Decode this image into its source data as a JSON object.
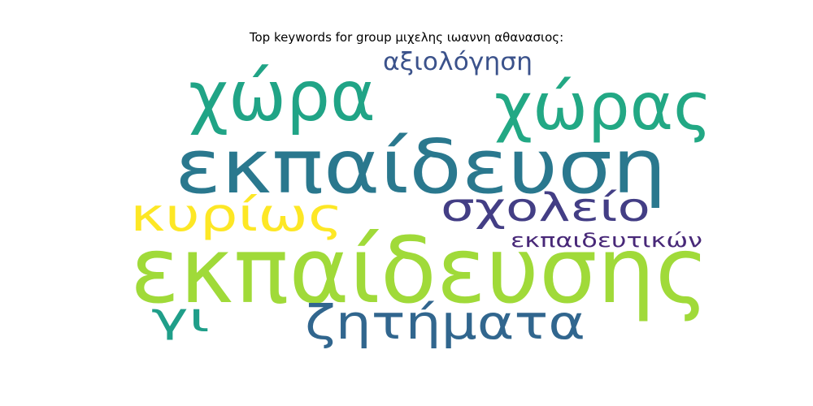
{
  "figure": {
    "title": "Top keywords for group μιχελης ιωαννη αθανασιος:"
  },
  "wordcloud": {
    "words": [
      {
        "text": "εκπαίδευσης",
        "color": "#a0da39",
        "rank": 1
      },
      {
        "text": "εκπαίδευση",
        "color": "#2a788e",
        "rank": 2
      },
      {
        "text": "χώρα",
        "color": "#20a486",
        "rank": 3
      },
      {
        "text": "χώρας",
        "color": "#22a884",
        "rank": 4
      },
      {
        "text": "ζητήματα",
        "color": "#31668e",
        "rank": 5
      },
      {
        "text": "κυρίως",
        "color": "#fde725",
        "rank": 6
      },
      {
        "text": "σχολείο",
        "color": "#433e85",
        "rank": 7
      },
      {
        "text": "γι",
        "color": "#1f9e89",
        "rank": 8
      },
      {
        "text": "αξιολόγηση",
        "color": "#3b528b",
        "rank": 9
      },
      {
        "text": "εκπαιδευτικών",
        "color": "#482878",
        "rank": 10
      }
    ]
  }
}
